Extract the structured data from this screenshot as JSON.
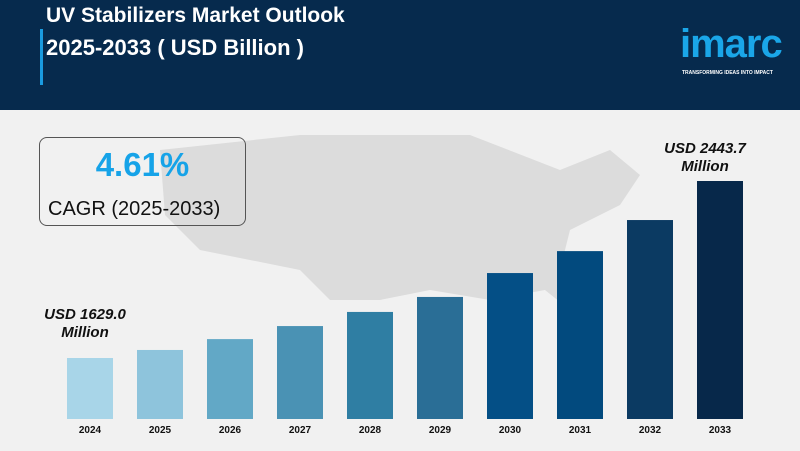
{
  "header": {
    "title_line1": "UV Stabilizers Market Outlook",
    "title_line2": "2025-2033 ( USD Billion )",
    "logo": "imarc",
    "logo_tagline": "TRANSFORMING IDEAS INTO IMPACT"
  },
  "cagr": {
    "value": "4.61%",
    "label": "CAGR (2025-2033)"
  },
  "chart_data": {
    "type": "bar",
    "categories": [
      "2024",
      "2025",
      "2026",
      "2027",
      "2028",
      "2029",
      "2030",
      "2031",
      "2032",
      "2033"
    ],
    "values": [
      1629.0,
      1666,
      1716,
      1776,
      1841,
      1910,
      2020,
      2121,
      2264,
      2443.7
    ],
    "annotations": {
      "first": "USD 1629.0 Million",
      "last": "USD 2443.7 Million"
    },
    "colors": [
      "#a8d5e8",
      "#8ec4dc",
      "#62a8c6",
      "#4a92b4",
      "#2f7ea3",
      "#2a6e96",
      "#044f86",
      "#024a7e",
      "#0b3a62",
      "#07284a"
    ],
    "grid": false
  }
}
